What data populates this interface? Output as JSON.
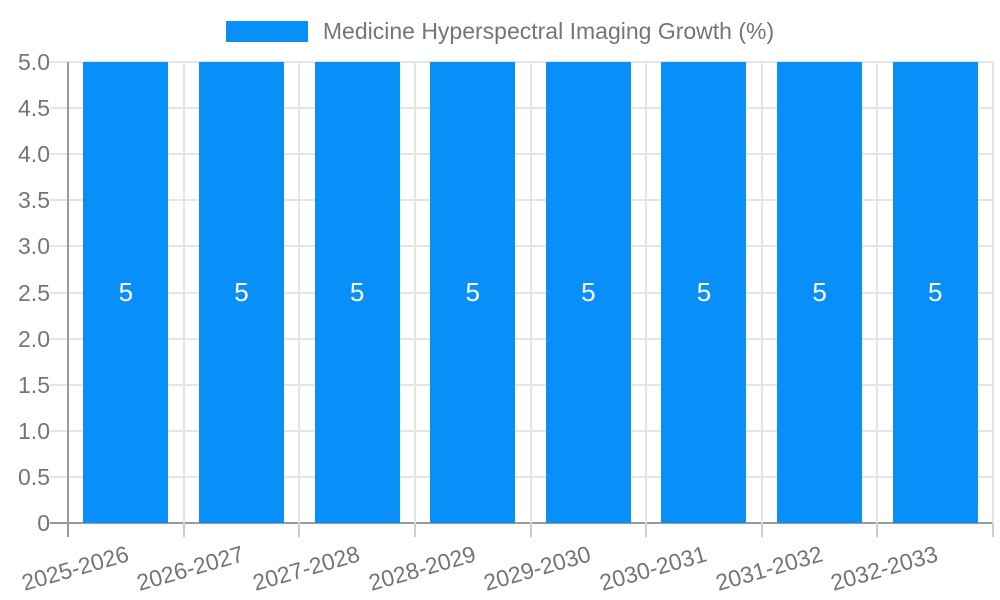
{
  "chart_data": {
    "type": "bar",
    "categories": [
      "2025-2026",
      "2026-2027",
      "2027-2028",
      "2028-2029",
      "2029-2030",
      "2030-2031",
      "2031-2032",
      "2032-2033"
    ],
    "series": [
      {
        "name": "Medicine Hyperspectral Imaging Growth (%)",
        "values": [
          5,
          5,
          5,
          5,
          5,
          5,
          5,
          5
        ]
      }
    ],
    "bar_value_labels": [
      "5",
      "5",
      "5",
      "5",
      "5",
      "5",
      "5",
      "5"
    ],
    "xlabel": "",
    "ylabel": "",
    "ylim": [
      0,
      5
    ],
    "ytick_labels": [
      "0",
      "0.5",
      "1.0",
      "1.5",
      "2.0",
      "2.5",
      "3.0",
      "3.5",
      "4.0",
      "4.5",
      "5.0"
    ],
    "grid": true,
    "legend_position": "top",
    "x_label_rotation_deg": -16,
    "colors": {
      "bar": "#0990f8",
      "grid": "#e5e5e5",
      "axis": "#9a9a9a",
      "tick": "#cccccc",
      "text": "#757575",
      "bar_label": "#ffffff",
      "background": "#ffffff"
    }
  }
}
